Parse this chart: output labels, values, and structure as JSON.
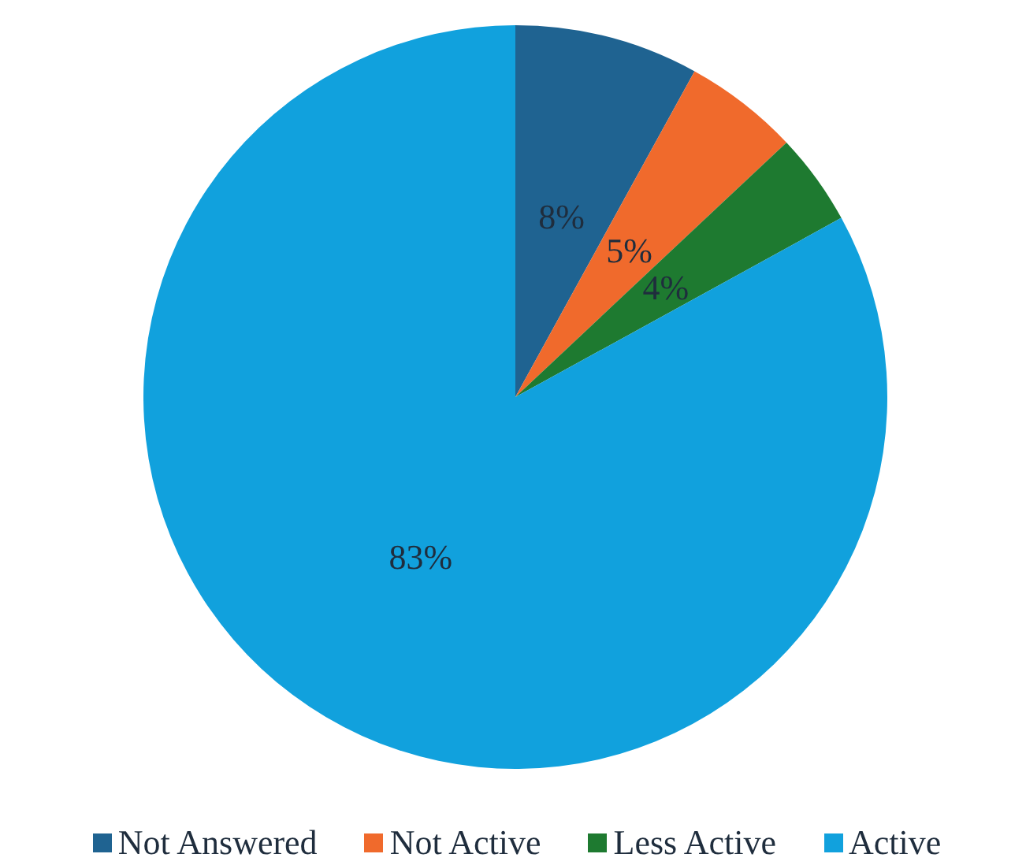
{
  "chart_data": {
    "type": "pie",
    "categories": [
      "Not Answered",
      "Not Active",
      "Less Active",
      "Active"
    ],
    "values": [
      8,
      5,
      4,
      83
    ],
    "colors": [
      "#1f6391",
      "#f06a2c",
      "#1e7a30",
      "#11a1dd"
    ],
    "value_labels": [
      "8%",
      "5%",
      "4%",
      "83%"
    ],
    "legend": "bottom"
  }
}
